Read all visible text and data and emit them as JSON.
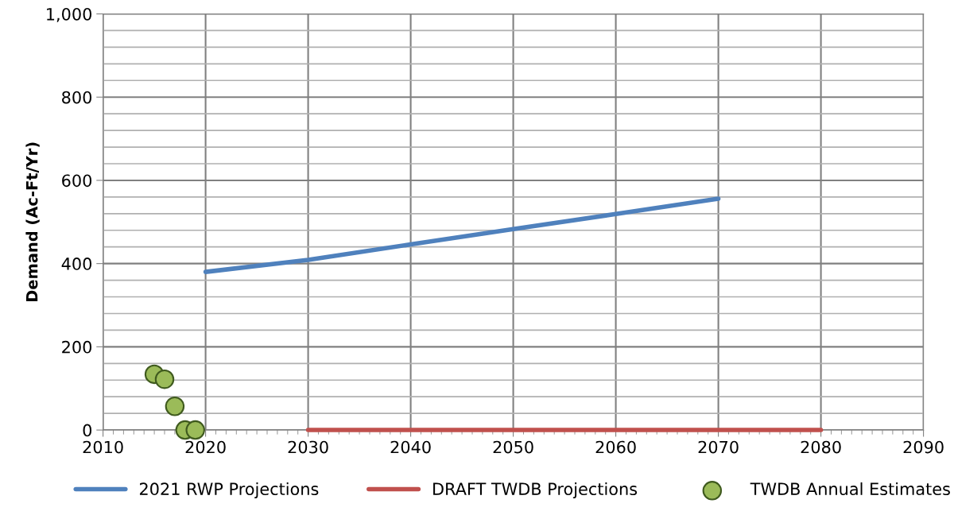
{
  "chart_data": {
    "type": "line",
    "ylabel": "Demand (Ac-Ft/Yr)",
    "xlim": [
      2010,
      2090
    ],
    "xticks": [
      2010,
      2020,
      2030,
      2040,
      2050,
      2060,
      2070,
      2080,
      2090
    ],
    "ylim": [
      0,
      1000
    ],
    "yticks": [
      0,
      200,
      400,
      600,
      800,
      {
        "value": 1000,
        "label": "1,000"
      }
    ],
    "grid": true,
    "legend": "bottom",
    "marker": "none",
    "line_style": "solid",
    "series": [
      {
        "name": "2021 RWP Projections",
        "color": "#4f81bd",
        "x": [
          2020,
          2030,
          2040,
          2050,
          2060,
          2070
        ],
        "values": [
          380,
          409,
          446,
          483,
          519,
          556
        ]
      },
      {
        "name": "DRAFT TWDB Projections",
        "color": "#c0504d",
        "x": [
          2030,
          2040,
          2050,
          2060,
          2070,
          2080
        ],
        "values": [
          0,
          0,
          0,
          0,
          0,
          0
        ]
      },
      {
        "name": "TWDB Annual Estimates",
        "type": "scatter",
        "marker": "circle",
        "color": "#9bbb59",
        "x": [
          2015,
          2016,
          2017,
          2018,
          2019
        ],
        "values": [
          134,
          122,
          57,
          0,
          0
        ]
      }
    ]
  }
}
